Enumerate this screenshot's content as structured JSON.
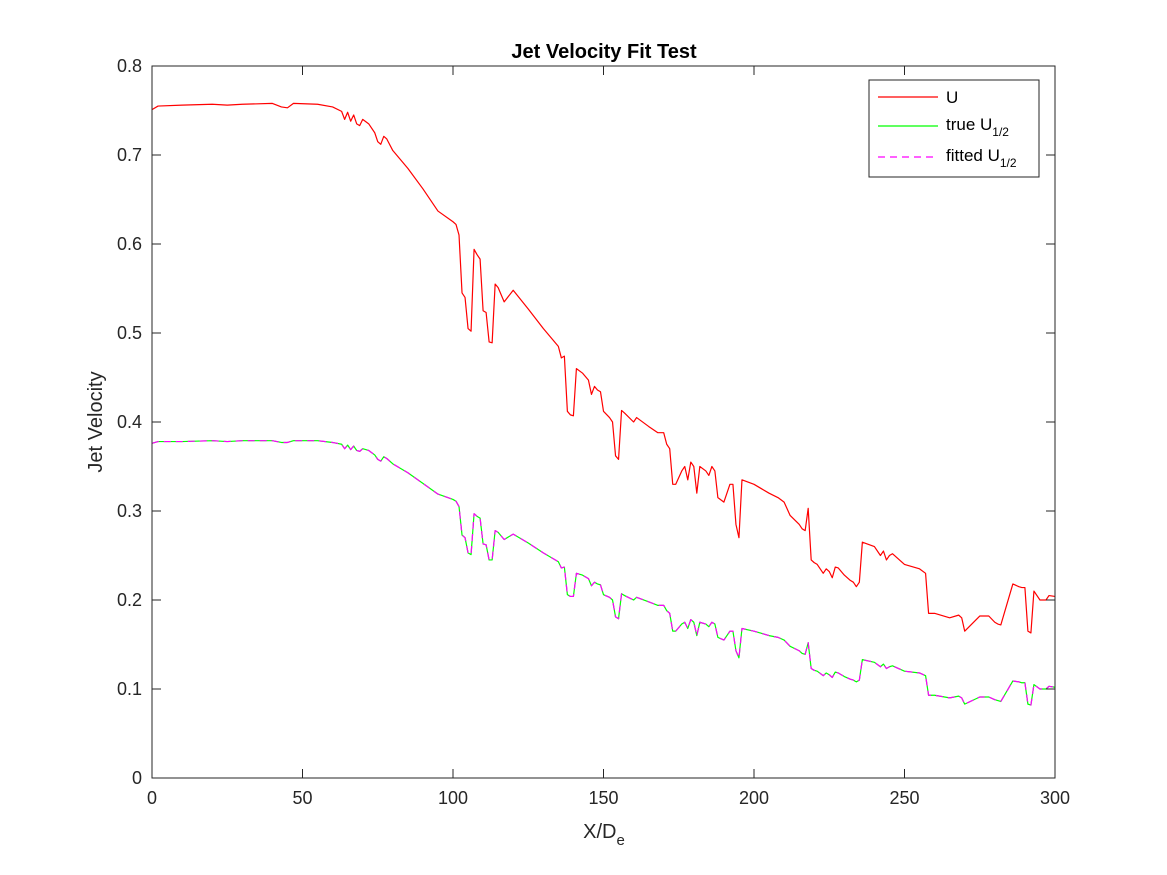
{
  "chart_data": {
    "type": "line",
    "title": "Jet Velocity Fit Test",
    "xlabel": {
      "base": "X/D",
      "sub": "e"
    },
    "ylabel": "Jet Velocity",
    "xlim": [
      0,
      300
    ],
    "ylim": [
      0,
      0.8
    ],
    "x_ticks": [
      "0",
      "50",
      "100",
      "150",
      "200",
      "250",
      "300"
    ],
    "y_ticks": [
      "0",
      "0.1",
      "0.2",
      "0.3",
      "0.4",
      "0.5",
      "0.6",
      "0.7",
      "0.8"
    ],
    "grid": false,
    "legend_position": "top-right",
    "series": [
      {
        "name": "U",
        "name_sub": "",
        "color": "#ff0000",
        "dash": "solid",
        "x": [
          0,
          2,
          10,
          20,
          25,
          30,
          40,
          43,
          45,
          47,
          55,
          60,
          63,
          64,
          65,
          66,
          67,
          68,
          69,
          70,
          72,
          74,
          75,
          76,
          77,
          78,
          80,
          85,
          90,
          95,
          100,
          101,
          102,
          103,
          104,
          105,
          106,
          107,
          108,
          109,
          110,
          111,
          112,
          113,
          114,
          115,
          117,
          120,
          125,
          130,
          135,
          136,
          137,
          138,
          139,
          140,
          141,
          143,
          145,
          146,
          147,
          148,
          149,
          150,
          152,
          153,
          154,
          155,
          156,
          157,
          160,
          161,
          165,
          168,
          170,
          171,
          172,
          173,
          174,
          176,
          177,
          178,
          179,
          180,
          181,
          182,
          184,
          185,
          186,
          187,
          188,
          190,
          192,
          193,
          194,
          195,
          196,
          200,
          205,
          208,
          210,
          212,
          215,
          216,
          217,
          218,
          219,
          220,
          221,
          223,
          224,
          225,
          226,
          227,
          228,
          230,
          232,
          233,
          234,
          235,
          236,
          240,
          242,
          243,
          244,
          245,
          246,
          250,
          255,
          257,
          258,
          260,
          265,
          268,
          269,
          270,
          275,
          278,
          280,
          281,
          282,
          286,
          288,
          289,
          290,
          291,
          292,
          293,
          295,
          297,
          298,
          300
        ],
        "y": [
          0.751,
          0.755,
          0.756,
          0.757,
          0.756,
          0.757,
          0.758,
          0.754,
          0.753,
          0.758,
          0.757,
          0.754,
          0.749,
          0.74,
          0.748,
          0.738,
          0.745,
          0.735,
          0.733,
          0.74,
          0.735,
          0.725,
          0.715,
          0.712,
          0.721,
          0.718,
          0.705,
          0.685,
          0.662,
          0.637,
          0.625,
          0.622,
          0.61,
          0.545,
          0.54,
          0.505,
          0.502,
          0.594,
          0.588,
          0.583,
          0.525,
          0.523,
          0.49,
          0.489,
          0.555,
          0.551,
          0.535,
          0.548,
          0.527,
          0.505,
          0.485,
          0.472,
          0.474,
          0.412,
          0.408,
          0.407,
          0.46,
          0.455,
          0.447,
          0.431,
          0.44,
          0.436,
          0.434,
          0.412,
          0.405,
          0.4,
          0.362,
          0.358,
          0.413,
          0.41,
          0.4,
          0.405,
          0.395,
          0.388,
          0.388,
          0.375,
          0.37,
          0.33,
          0.33,
          0.345,
          0.35,
          0.335,
          0.355,
          0.35,
          0.32,
          0.35,
          0.345,
          0.34,
          0.35,
          0.345,
          0.315,
          0.31,
          0.33,
          0.33,
          0.285,
          0.27,
          0.335,
          0.33,
          0.32,
          0.315,
          0.31,
          0.295,
          0.285,
          0.28,
          0.278,
          0.303,
          0.245,
          0.242,
          0.24,
          0.23,
          0.235,
          0.232,
          0.225,
          0.237,
          0.236,
          0.228,
          0.222,
          0.22,
          0.215,
          0.22,
          0.265,
          0.26,
          0.25,
          0.255,
          0.245,
          0.25,
          0.252,
          0.24,
          0.235,
          0.23,
          0.185,
          0.185,
          0.18,
          0.183,
          0.18,
          0.165,
          0.182,
          0.182,
          0.175,
          0.173,
          0.172,
          0.218,
          0.215,
          0.214,
          0.214,
          0.165,
          0.163,
          0.21,
          0.2,
          0.2,
          0.205,
          0.204
        ]
      },
      {
        "name": "true U",
        "name_sub": "1/2",
        "color": "#00ff00",
        "dash": "solid",
        "x": [
          0,
          2,
          10,
          20,
          25,
          30,
          40,
          43,
          45,
          47,
          55,
          60,
          63,
          64,
          65,
          66,
          67,
          68,
          69,
          70,
          72,
          74,
          75,
          76,
          77,
          78,
          80,
          85,
          90,
          95,
          100,
          101,
          102,
          103,
          104,
          105,
          106,
          107,
          108,
          109,
          110,
          111,
          112,
          113,
          114,
          115,
          117,
          120,
          125,
          130,
          135,
          136,
          137,
          138,
          139,
          140,
          141,
          143,
          145,
          146,
          147,
          148,
          149,
          150,
          152,
          153,
          154,
          155,
          156,
          157,
          160,
          161,
          165,
          168,
          170,
          171,
          172,
          173,
          174,
          176,
          177,
          178,
          179,
          180,
          181,
          182,
          184,
          185,
          186,
          187,
          188,
          190,
          192,
          193,
          194,
          195,
          196,
          200,
          205,
          208,
          210,
          212,
          215,
          216,
          217,
          218,
          219,
          220,
          221,
          223,
          224,
          225,
          226,
          227,
          228,
          230,
          232,
          233,
          234,
          235,
          236,
          240,
          242,
          243,
          244,
          245,
          246,
          250,
          255,
          257,
          258,
          260,
          265,
          268,
          269,
          270,
          275,
          278,
          280,
          281,
          282,
          286,
          288,
          289,
          290,
          291,
          292,
          293,
          295,
          297,
          298,
          300
        ],
        "y": [
          0.376,
          0.378,
          0.378,
          0.379,
          0.378,
          0.379,
          0.379,
          0.377,
          0.377,
          0.379,
          0.379,
          0.377,
          0.375,
          0.37,
          0.374,
          0.369,
          0.373,
          0.368,
          0.367,
          0.37,
          0.368,
          0.363,
          0.358,
          0.356,
          0.361,
          0.359,
          0.353,
          0.343,
          0.331,
          0.319,
          0.313,
          0.311,
          0.305,
          0.273,
          0.27,
          0.253,
          0.251,
          0.297,
          0.294,
          0.292,
          0.263,
          0.262,
          0.245,
          0.245,
          0.278,
          0.276,
          0.268,
          0.274,
          0.264,
          0.253,
          0.243,
          0.236,
          0.237,
          0.206,
          0.204,
          0.204,
          0.23,
          0.228,
          0.224,
          0.216,
          0.22,
          0.218,
          0.217,
          0.206,
          0.203,
          0.2,
          0.181,
          0.179,
          0.207,
          0.205,
          0.2,
          0.203,
          0.198,
          0.194,
          0.194,
          0.188,
          0.185,
          0.165,
          0.165,
          0.173,
          0.175,
          0.168,
          0.178,
          0.175,
          0.16,
          0.175,
          0.173,
          0.17,
          0.175,
          0.173,
          0.158,
          0.155,
          0.165,
          0.165,
          0.143,
          0.135,
          0.168,
          0.165,
          0.16,
          0.158,
          0.155,
          0.148,
          0.143,
          0.14,
          0.139,
          0.152,
          0.123,
          0.121,
          0.12,
          0.115,
          0.118,
          0.116,
          0.113,
          0.119,
          0.118,
          0.114,
          0.111,
          0.11,
          0.108,
          0.11,
          0.133,
          0.13,
          0.125,
          0.128,
          0.123,
          0.125,
          0.126,
          0.12,
          0.118,
          0.115,
          0.093,
          0.093,
          0.09,
          0.092,
          0.09,
          0.083,
          0.091,
          0.091,
          0.088,
          0.087,
          0.086,
          0.109,
          0.108,
          0.107,
          0.107,
          0.083,
          0.082,
          0.105,
          0.1,
          0.1,
          0.103,
          0.102
        ]
      },
      {
        "name": "fitted U",
        "name_sub": "1/2",
        "color": "#ff00ff",
        "dash": "dashed",
        "x": [
          0,
          2,
          10,
          20,
          25,
          30,
          40,
          43,
          45,
          47,
          55,
          60,
          63,
          64,
          65,
          66,
          67,
          68,
          69,
          70,
          72,
          74,
          75,
          76,
          77,
          78,
          80,
          85,
          90,
          95,
          100,
          101,
          102,
          103,
          104,
          105,
          106,
          107,
          108,
          109,
          110,
          111,
          112,
          113,
          114,
          115,
          117,
          120,
          125,
          130,
          135,
          136,
          137,
          138,
          139,
          140,
          141,
          143,
          145,
          146,
          147,
          148,
          149,
          150,
          152,
          153,
          154,
          155,
          156,
          157,
          160,
          161,
          165,
          168,
          170,
          171,
          172,
          173,
          174,
          176,
          177,
          178,
          179,
          180,
          181,
          182,
          184,
          185,
          186,
          187,
          188,
          190,
          192,
          193,
          194,
          195,
          196,
          200,
          205,
          208,
          210,
          212,
          215,
          216,
          217,
          218,
          219,
          220,
          221,
          223,
          224,
          225,
          226,
          227,
          228,
          230,
          232,
          233,
          234,
          235,
          236,
          240,
          242,
          243,
          244,
          245,
          246,
          250,
          255,
          257,
          258,
          260,
          265,
          268,
          269,
          270,
          275,
          278,
          280,
          281,
          282,
          286,
          288,
          289,
          290,
          291,
          292,
          293,
          295,
          297,
          298,
          300
        ],
        "y": [
          0.376,
          0.378,
          0.378,
          0.379,
          0.378,
          0.379,
          0.379,
          0.377,
          0.377,
          0.379,
          0.379,
          0.377,
          0.375,
          0.37,
          0.374,
          0.369,
          0.373,
          0.368,
          0.367,
          0.37,
          0.368,
          0.363,
          0.358,
          0.356,
          0.361,
          0.359,
          0.353,
          0.343,
          0.331,
          0.319,
          0.313,
          0.311,
          0.305,
          0.273,
          0.27,
          0.253,
          0.251,
          0.297,
          0.294,
          0.292,
          0.263,
          0.262,
          0.245,
          0.245,
          0.278,
          0.276,
          0.268,
          0.274,
          0.264,
          0.253,
          0.243,
          0.236,
          0.237,
          0.206,
          0.204,
          0.204,
          0.23,
          0.228,
          0.224,
          0.216,
          0.22,
          0.218,
          0.217,
          0.206,
          0.203,
          0.2,
          0.181,
          0.179,
          0.207,
          0.205,
          0.2,
          0.203,
          0.198,
          0.194,
          0.194,
          0.188,
          0.185,
          0.165,
          0.165,
          0.173,
          0.175,
          0.168,
          0.178,
          0.175,
          0.16,
          0.175,
          0.173,
          0.17,
          0.175,
          0.173,
          0.158,
          0.155,
          0.165,
          0.165,
          0.143,
          0.135,
          0.168,
          0.165,
          0.16,
          0.158,
          0.155,
          0.148,
          0.143,
          0.14,
          0.139,
          0.152,
          0.123,
          0.121,
          0.12,
          0.115,
          0.118,
          0.116,
          0.113,
          0.119,
          0.118,
          0.114,
          0.111,
          0.11,
          0.108,
          0.11,
          0.133,
          0.13,
          0.125,
          0.128,
          0.123,
          0.125,
          0.126,
          0.12,
          0.118,
          0.115,
          0.093,
          0.093,
          0.09,
          0.092,
          0.09,
          0.083,
          0.091,
          0.091,
          0.088,
          0.087,
          0.086,
          0.109,
          0.108,
          0.107,
          0.107,
          0.083,
          0.082,
          0.105,
          0.1,
          0.1,
          0.103,
          0.102
        ]
      }
    ]
  }
}
